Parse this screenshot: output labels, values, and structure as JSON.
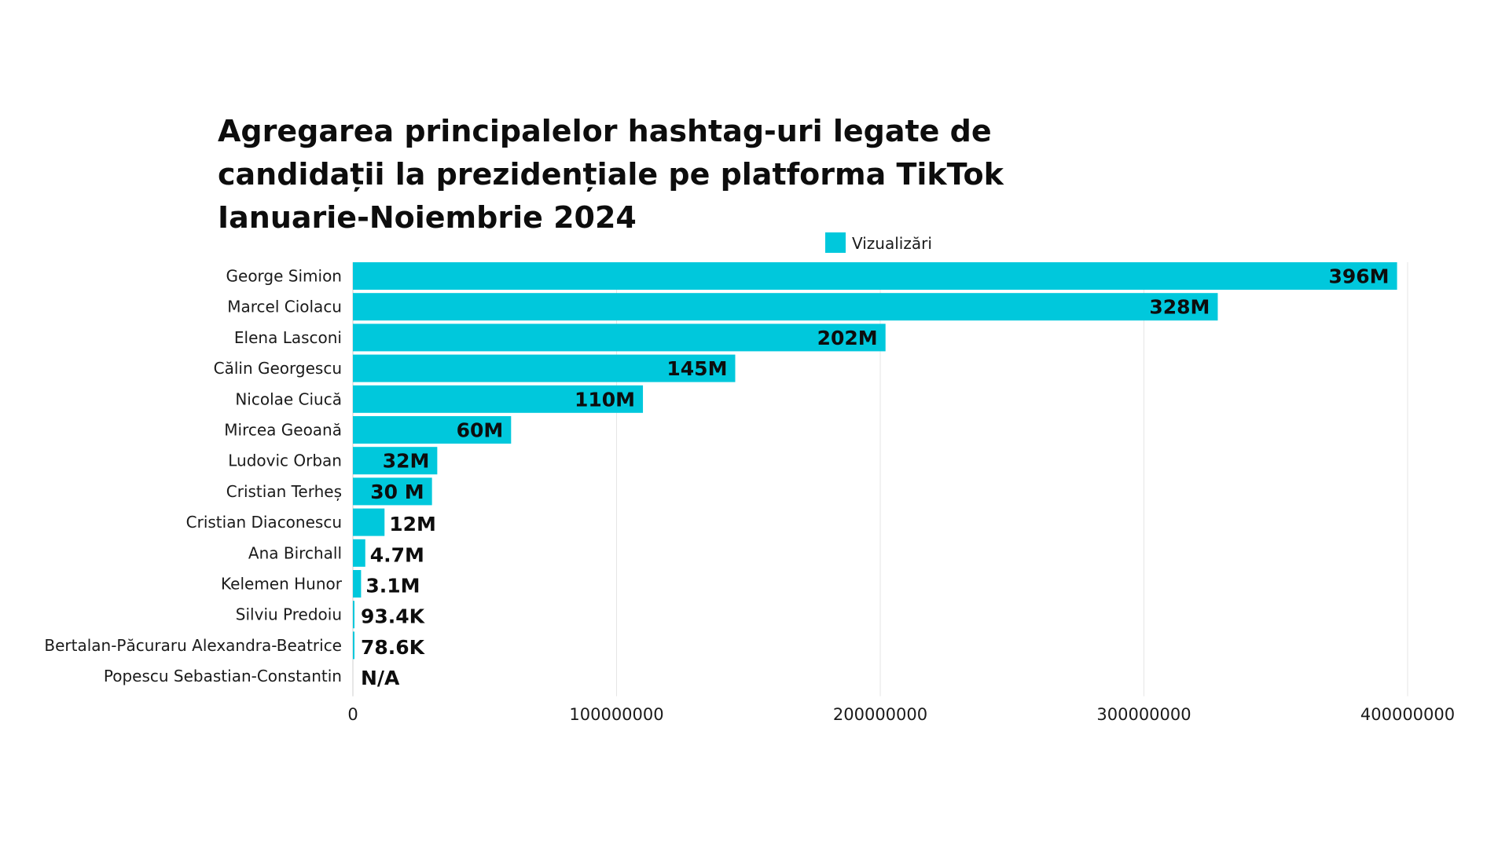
{
  "chart_data": {
    "type": "bar",
    "orientation": "horizontal",
    "title_lines": [
      "Agregarea principalelor hashtag-uri legate de",
      "candidații la prezidențiale pe platforma TikTok",
      "Ianuarie-Noiembrie 2024"
    ],
    "legend": {
      "label": "Vizualizări",
      "position": "top-center"
    },
    "bar_color": "#00c8dc",
    "grid": true,
    "xlim": [
      0,
      400000000
    ],
    "x_ticks": [
      0,
      100000000,
      200000000,
      300000000,
      400000000
    ],
    "x_tick_labels": [
      "0",
      "100000000",
      "200000000",
      "300000000",
      "400000000"
    ],
    "categories": [
      "George Simion",
      "Marcel Ciolacu",
      "Elena Lasconi",
      "Călin Georgescu",
      "Nicolae Ciucă",
      "Mircea Geoană",
      "Ludovic Orban",
      "Cristian Terheș",
      "Cristian Diaconescu",
      "Ana Birchall",
      "Kelemen Hunor",
      "Silviu Predoiu",
      "Bertalan-Păcuraru Alexandra-Beatrice",
      "Popescu Sebastian-Constantin"
    ],
    "values": [
      396000000,
      328000000,
      202000000,
      145000000,
      110000000,
      60000000,
      32000000,
      30000000,
      12000000,
      4700000,
      3100000,
      93400,
      78600,
      null
    ],
    "data_labels": [
      "396M",
      "328M",
      "202M",
      "145M",
      "110M",
      "60M",
      "32M",
      "30 M",
      "12M",
      "4.7M",
      "3.1M",
      "93.4K",
      "78.6K",
      "N/A"
    ]
  }
}
